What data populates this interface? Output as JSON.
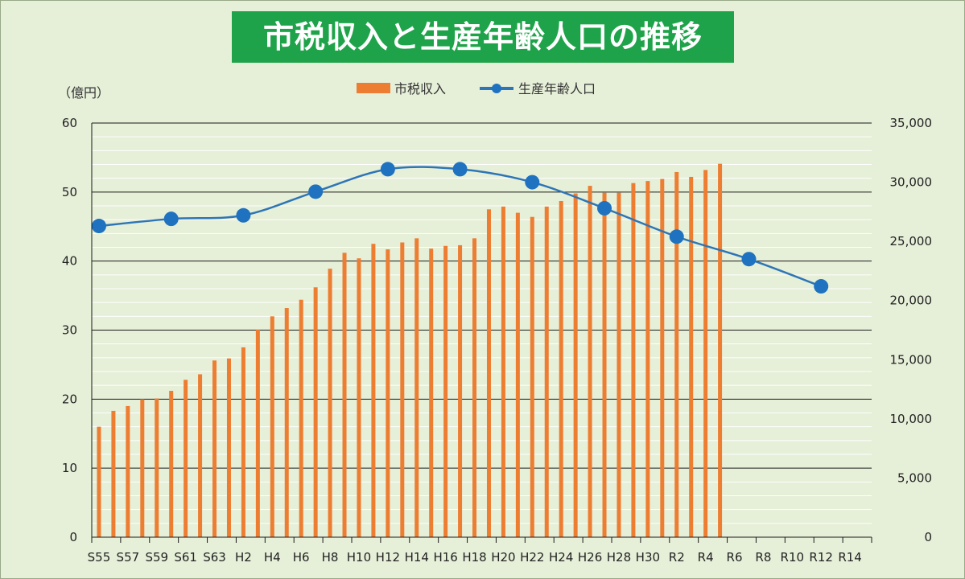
{
  "chart_data": {
    "type": "bar",
    "title": "市税収入と生産年齢人口の推移",
    "y_unit_label": "（億円）",
    "legend": [
      "市税収入",
      "生産年齢人口"
    ],
    "legend_position": "top-center",
    "x_tick_labels": [
      "S55",
      "S57",
      "S59",
      "S61",
      "S63",
      "H2",
      "H4",
      "H6",
      "H8",
      "H10",
      "H12",
      "H14",
      "H16",
      "H18",
      "H20",
      "H22",
      "H24",
      "H26",
      "H28",
      "H30",
      "R2",
      "R4",
      "R6",
      "R8",
      "R10",
      "R12",
      "R14"
    ],
    "left_axis": {
      "range": [
        0,
        60
      ],
      "ticks": [
        "0",
        "10",
        "20",
        "30",
        "40",
        "50",
        "60"
      ]
    },
    "right_axis": {
      "range": [
        0,
        35000
      ],
      "ticks": [
        "0",
        "5,000",
        "10,000",
        "15,000",
        "20,000",
        "25,000",
        "30,000",
        "35,000"
      ]
    },
    "series": [
      {
        "name": "市税収入",
        "type": "bar",
        "axis": "left",
        "color": "#ed7d31",
        "x_index": [
          0,
          1,
          2,
          3,
          4,
          5,
          6,
          7,
          8,
          9,
          10,
          11,
          12,
          13,
          14,
          15,
          16,
          17,
          18,
          19,
          20,
          21,
          22,
          23,
          24,
          25,
          26,
          27,
          28,
          29,
          30,
          31,
          32,
          33,
          34,
          35,
          36,
          37,
          38,
          39,
          40,
          41,
          42,
          43
        ],
        "values": [
          16.0,
          18.3,
          19.0,
          20.0,
          20.1,
          21.2,
          22.8,
          23.6,
          25.6,
          25.9,
          27.5,
          30.1,
          32.0,
          33.2,
          34.4,
          36.2,
          38.9,
          41.2,
          40.4,
          42.5,
          41.7,
          42.7,
          43.3,
          41.8,
          42.2,
          42.3,
          43.3,
          47.5,
          47.9,
          47.0,
          46.4,
          47.9,
          48.7,
          49.8,
          50.9,
          49.9,
          49.9,
          51.3,
          51.6,
          51.9,
          52.9,
          52.2,
          53.2,
          54.1
        ]
      },
      {
        "name": "生産年齢人口",
        "type": "line",
        "axis": "right",
        "color": "#2e75b6",
        "marker_color": "#1f72c0",
        "x_index": [
          0,
          5,
          10,
          15,
          20,
          25,
          30,
          35,
          40,
          45,
          50
        ],
        "values": [
          26300,
          26900,
          27200,
          29200,
          31100,
          31100,
          30000,
          27800,
          25400,
          23500,
          21200
        ]
      }
    ]
  }
}
